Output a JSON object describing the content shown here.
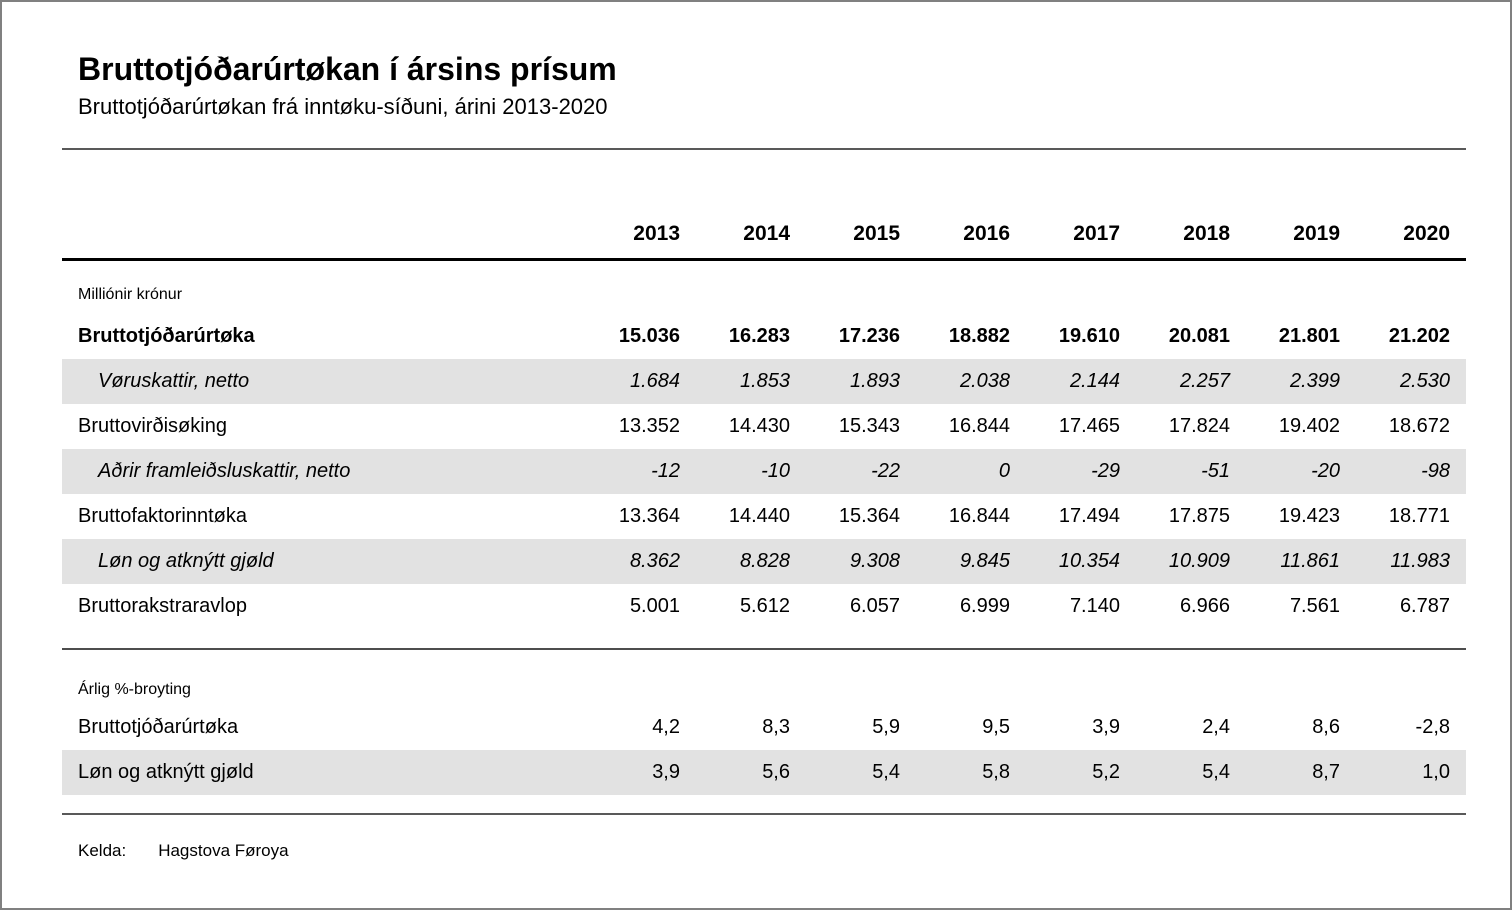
{
  "page": {
    "title": "Bruttotjóðarúrtøkan í ársins prísum",
    "subtitle": "Bruttotjóðarúrtøkan frá inntøku-síðuni, árini 2013-2020"
  },
  "table": {
    "years": [
      "2013",
      "2014",
      "2015",
      "2016",
      "2017",
      "2018",
      "2019",
      "2020"
    ],
    "krona_section": {
      "unit_label": "Milliónir krónur",
      "rows": [
        {
          "label": "Bruttotjóðarúrtøka",
          "values": [
            "15.036",
            "16.283",
            "17.236",
            "18.882",
            "19.610",
            "20.081",
            "21.801",
            "21.202"
          ]
        },
        {
          "label": "Vøruskattir, netto",
          "values": [
            "1.684",
            "1.853",
            "1.893",
            "2.038",
            "2.144",
            "2.257",
            "2.399",
            "2.530"
          ]
        },
        {
          "label": "Bruttovirðisøking",
          "values": [
            "13.352",
            "14.430",
            "15.343",
            "16.844",
            "17.465",
            "17.824",
            "19.402",
            "18.672"
          ]
        },
        {
          "label": "Aðrir framleiðsluskattir, netto",
          "values": [
            "-12",
            "-10",
            "-22",
            "0",
            "-29",
            "-51",
            "-20",
            "-98"
          ]
        },
        {
          "label": "Bruttofaktorinntøka",
          "values": [
            "13.364",
            "14.440",
            "15.364",
            "16.844",
            "17.494",
            "17.875",
            "19.423",
            "18.771"
          ]
        },
        {
          "label": "Løn og atknýtt gjøld",
          "values": [
            "8.362",
            "8.828",
            "9.308",
            "9.845",
            "10.354",
            "10.909",
            "11.861",
            "11.983"
          ]
        },
        {
          "label": "Bruttorakstraravlop",
          "values": [
            "5.001",
            "5.612",
            "6.057",
            "6.999",
            "7.140",
            "6.966",
            "7.561",
            "6.787"
          ]
        }
      ]
    },
    "percent_section": {
      "unit_label": "Árlig %-broyting",
      "rows": [
        {
          "label": "Bruttotjóðarúrtøka",
          "values": [
            "4,2",
            "8,3",
            "5,9",
            "9,5",
            "3,9",
            "2,4",
            "8,6",
            "-2,8"
          ]
        },
        {
          "label": "Løn og atknýtt gjøld",
          "values": [
            "3,9",
            "5,6",
            "5,4",
            "5,8",
            "5,2",
            "5,4",
            "8,7",
            "1,0"
          ]
        }
      ]
    }
  },
  "footer": {
    "source_label": "Kelda:",
    "source_value": "Hagstova Føroya"
  },
  "colors": {
    "stripe": "#e2e2e2",
    "heavy_rule": "#000000",
    "light_rule": "#595959",
    "page_border": "#808080"
  },
  "chart_data": {
    "type": "table",
    "title": "Bruttotjóðarúrtøkan í ársins prísum",
    "subtitle": "Bruttotjóðarúrtøkan frá inntøku-síðuni, árini 2013-2020",
    "columns": [
      2013,
      2014,
      2015,
      2016,
      2017,
      2018,
      2019,
      2020
    ],
    "sections": [
      {
        "unit": "Milliónir krónur",
        "rows": [
          {
            "label": "Bruttotjóðarúrtøka",
            "values": [
              15036,
              16283,
              17236,
              18882,
              19610,
              20081,
              21801,
              21202
            ]
          },
          {
            "label": "Vøruskattir, netto",
            "values": [
              1684,
              1853,
              1893,
              2038,
              2144,
              2257,
              2399,
              2530
            ]
          },
          {
            "label": "Bruttovirðisøking",
            "values": [
              13352,
              14430,
              15343,
              16844,
              17465,
              17824,
              19402,
              18672
            ]
          },
          {
            "label": "Aðrir framleiðsluskattir, netto",
            "values": [
              -12,
              -10,
              -22,
              0,
              -29,
              -51,
              -20,
              -98
            ]
          },
          {
            "label": "Bruttofaktorinntøka",
            "values": [
              13364,
              14440,
              15364,
              16844,
              17494,
              17875,
              19423,
              18771
            ]
          },
          {
            "label": "Løn og atknýtt gjøld",
            "values": [
              8362,
              8828,
              9308,
              9845,
              10354,
              10909,
              11861,
              11983
            ]
          },
          {
            "label": "Bruttorakstraravlop",
            "values": [
              5001,
              5612,
              6057,
              6999,
              7140,
              6966,
              7561,
              6787
            ]
          }
        ]
      },
      {
        "unit": "Árlig %-broyting",
        "rows": [
          {
            "label": "Bruttotjóðarúrtøka",
            "values": [
              4.2,
              8.3,
              5.9,
              9.5,
              3.9,
              2.4,
              8.6,
              -2.8
            ]
          },
          {
            "label": "Løn og atknýtt gjøld",
            "values": [
              3.9,
              5.6,
              5.4,
              5.8,
              5.2,
              5.4,
              8.7,
              1.0
            ]
          }
        ]
      }
    ],
    "source": "Hagstova Føroya"
  }
}
